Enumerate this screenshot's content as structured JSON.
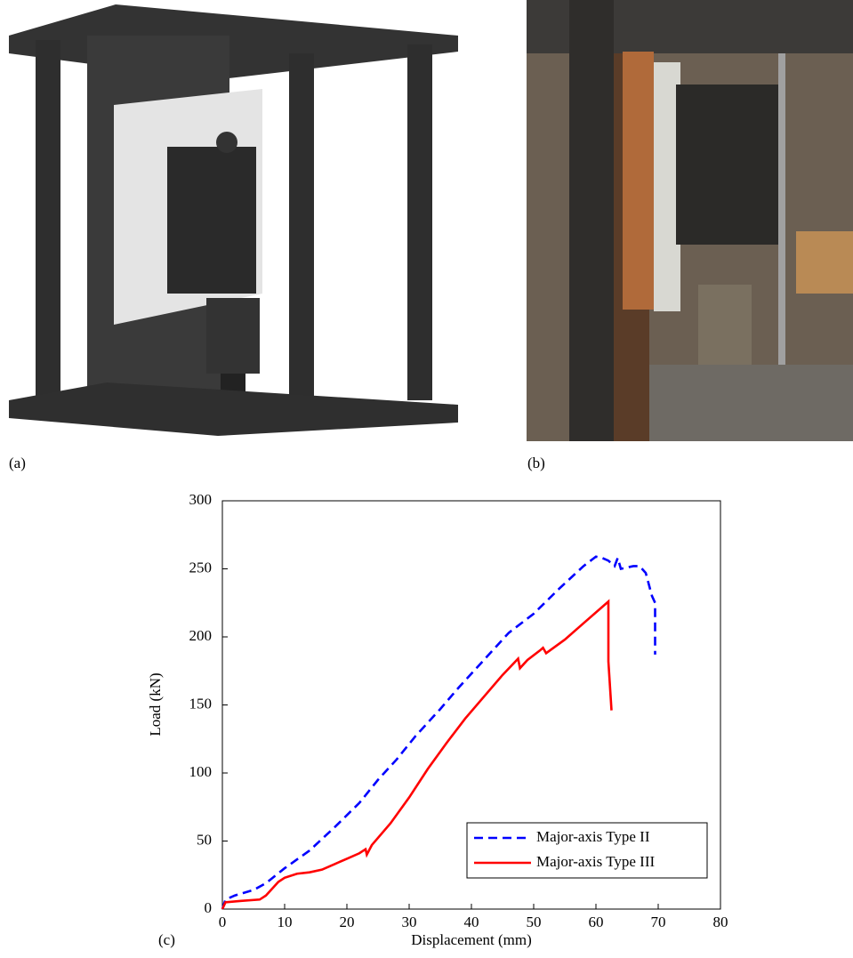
{
  "panel_labels": [
    "(a)",
    "(b)",
    "(c)"
  ],
  "chart_data": {
    "type": "line",
    "x_label": "Displacement (mm)",
    "y_label": "Load (kN)",
    "xlim": [
      0,
      80
    ],
    "xticks": [
      0,
      10,
      20,
      30,
      40,
      50,
      60,
      70,
      80
    ],
    "ylim": [
      0,
      300
    ],
    "yticks": [
      0,
      50,
      100,
      150,
      200,
      250,
      300
    ],
    "grid": false,
    "legend": "lower right",
    "series": [
      {
        "name": "Major-axis Type II",
        "color": "#0000ff",
        "dash": true,
        "x": [
          0,
          0.5,
          2,
          5,
          7,
          10,
          14,
          18,
          22,
          25,
          28,
          31,
          35,
          38,
          42,
          46,
          50,
          54,
          58,
          60,
          61,
          62,
          63,
          63.5,
          64,
          66,
          67,
          68,
          69,
          69.5,
          69.5
        ],
        "values": [
          0,
          7,
          10,
          14,
          19,
          30,
          43,
          60,
          78,
          95,
          110,
          127,
          147,
          163,
          183,
          203,
          217,
          235,
          252,
          259,
          258,
          256,
          252,
          258,
          250,
          252,
          252,
          247,
          230,
          225,
          187
        ]
      },
      {
        "name": "Major-axis Type III",
        "color": "#ff0000",
        "dash": false,
        "x": [
          0,
          0.5,
          3,
          6,
          7,
          9,
          10,
          12,
          14,
          16,
          18,
          20,
          22,
          23,
          23.2,
          24,
          27,
          30,
          33,
          36,
          39,
          42,
          45,
          47.5,
          47.8,
          49,
          51,
          51.5,
          52,
          55,
          58,
          61,
          62,
          62,
          62.5
        ],
        "values": [
          0,
          5,
          6,
          7,
          10,
          20,
          23,
          26,
          27,
          29,
          33,
          37,
          41,
          44,
          40,
          47,
          63,
          82,
          103,
          122,
          140,
          156,
          172,
          184,
          177,
          183,
          190,
          192,
          188,
          198,
          210,
          222,
          226,
          182,
          146
        ]
      }
    ]
  }
}
